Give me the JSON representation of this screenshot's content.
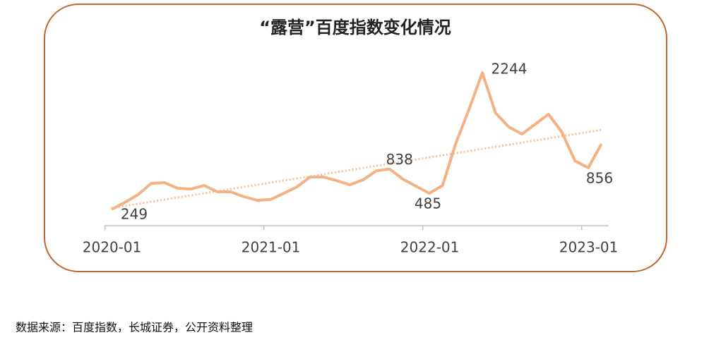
{
  "chart_data": {
    "type": "line",
    "title": "“露营”百度指数变化情况",
    "categories": [
      "2020-01",
      null,
      null,
      null,
      null,
      null,
      null,
      null,
      null,
      null,
      null,
      null,
      "2021-01",
      null,
      null,
      null,
      null,
      null,
      null,
      null,
      null,
      null,
      null,
      null,
      "2022-01",
      null,
      null,
      null,
      null,
      null,
      null,
      null,
      null,
      null,
      null,
      null,
      "2023-01",
      null
    ],
    "series": [
      {
        "color": "#f4b183",
        "values": [
          249,
          352,
          465,
          630,
          640,
          557,
          547,
          599,
          506,
          506,
          434,
          383,
          393,
          485,
          578,
          722,
          722,
          670,
          609,
          681,
          814,
          838,
          691,
          588,
          485,
          599,
          1215,
          1709,
          2244,
          1657,
          1452,
          1349,
          1493,
          1637,
          1380,
          958,
          856,
          1205
        ]
      }
    ],
    "labeled_points": [
      0,
      21,
      24,
      28,
      36
    ],
    "trendline": "linear",
    "border_color": "#c0662b",
    "source": "数据来源：百度指数，长城证券，公开资料整理"
  }
}
